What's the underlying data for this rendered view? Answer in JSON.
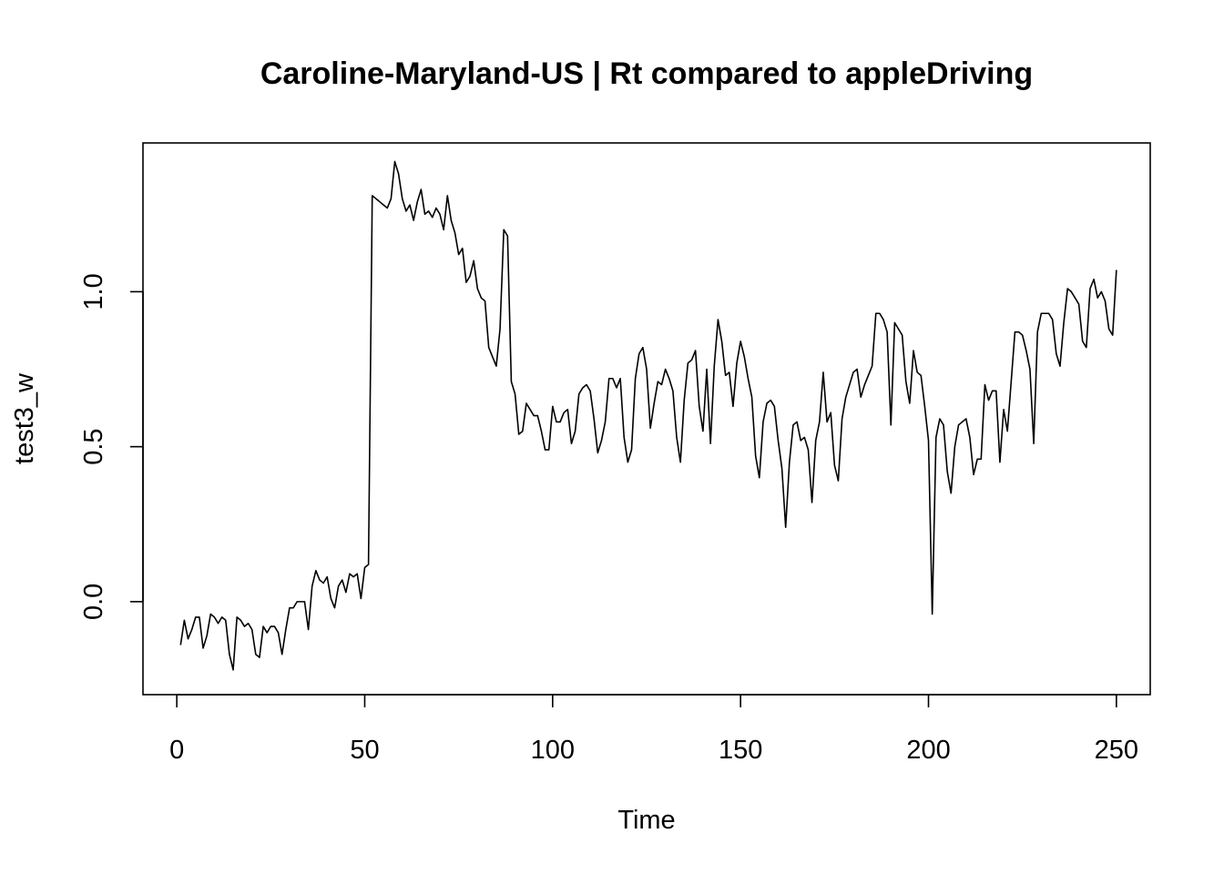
{
  "chart_data": {
    "type": "line",
    "title": "Caroline-Maryland-US | Rt compared to appleDriving",
    "xlabel": "Time",
    "ylabel": "test3_w",
    "xlim": [
      -9,
      259
    ],
    "ylim": [
      -0.3,
      1.48
    ],
    "x_ticks": [
      0,
      50,
      100,
      150,
      200,
      250
    ],
    "y_ticks": [
      0.0,
      0.5,
      1.0
    ],
    "x_tick_labels": [
      "0",
      "50",
      "100",
      "150",
      "200",
      "250"
    ],
    "y_tick_labels": [
      "0.0",
      "0.5",
      "1.0"
    ],
    "grid": false,
    "series": [
      {
        "x_start": 1,
        "values": [
          -0.14,
          -0.06,
          -0.12,
          -0.09,
          -0.05,
          -0.05,
          -0.15,
          -0.11,
          -0.04,
          -0.05,
          -0.07,
          -0.05,
          -0.06,
          -0.17,
          -0.22,
          -0.05,
          -0.06,
          -0.08,
          -0.07,
          -0.09,
          -0.17,
          -0.18,
          -0.08,
          -0.1,
          -0.08,
          -0.08,
          -0.1,
          -0.17,
          -0.09,
          -0.02,
          -0.02,
          0.0,
          0.0,
          0.0,
          -0.09,
          0.05,
          0.1,
          0.07,
          0.06,
          0.08,
          0.01,
          -0.02,
          0.05,
          0.07,
          0.03,
          0.09,
          0.08,
          0.09,
          0.01,
          0.11,
          0.12,
          1.31,
          1.3,
          1.29,
          1.28,
          1.27,
          1.3,
          1.42,
          1.38,
          1.3,
          1.26,
          1.28,
          1.23,
          1.29,
          1.33,
          1.25,
          1.26,
          1.24,
          1.27,
          1.25,
          1.2,
          1.31,
          1.23,
          1.19,
          1.12,
          1.14,
          1.03,
          1.05,
          1.1,
          1.01,
          0.98,
          0.97,
          0.82,
          0.79,
          0.76,
          0.88,
          1.2,
          1.18,
          0.71,
          0.67,
          0.54,
          0.55,
          0.64,
          0.62,
          0.6,
          0.6,
          0.55,
          0.49,
          0.49,
          0.63,
          0.58,
          0.58,
          0.61,
          0.62,
          0.51,
          0.55,
          0.67,
          0.69,
          0.7,
          0.68,
          0.59,
          0.48,
          0.52,
          0.58,
          0.72,
          0.72,
          0.69,
          0.72,
          0.53,
          0.45,
          0.49,
          0.72,
          0.8,
          0.82,
          0.75,
          0.56,
          0.64,
          0.71,
          0.7,
          0.75,
          0.72,
          0.68,
          0.53,
          0.45,
          0.65,
          0.77,
          0.78,
          0.81,
          0.63,
          0.55,
          0.75,
          0.51,
          0.76,
          0.91,
          0.84,
          0.73,
          0.74,
          0.63,
          0.77,
          0.84,
          0.79,
          0.72,
          0.66,
          0.47,
          0.4,
          0.58,
          0.64,
          0.65,
          0.63,
          0.52,
          0.43,
          0.24,
          0.45,
          0.57,
          0.58,
          0.52,
          0.53,
          0.49,
          0.32,
          0.52,
          0.58,
          0.74,
          0.58,
          0.61,
          0.44,
          0.39,
          0.59,
          0.66,
          0.7,
          0.74,
          0.75,
          0.66,
          0.7,
          0.73,
          0.76,
          0.93,
          0.93,
          0.91,
          0.87,
          0.57,
          0.9,
          0.88,
          0.86,
          0.71,
          0.64,
          0.81,
          0.74,
          0.73,
          0.63,
          0.52,
          -0.04,
          0.53,
          0.59,
          0.57,
          0.42,
          0.35,
          0.5,
          0.57,
          0.58,
          0.59,
          0.53,
          0.41,
          0.46,
          0.46,
          0.7,
          0.65,
          0.68,
          0.68,
          0.45,
          0.62,
          0.55,
          0.71,
          0.87,
          0.87,
          0.86,
          0.81,
          0.75,
          0.51,
          0.87,
          0.93,
          0.93,
          0.93,
          0.91,
          0.8,
          0.76,
          0.9,
          1.01,
          1.0,
          0.98,
          0.96,
          0.84,
          0.82,
          1.01,
          1.04,
          0.98,
          1.0,
          0.97,
          0.88,
          0.86,
          1.07
        ]
      }
    ]
  }
}
